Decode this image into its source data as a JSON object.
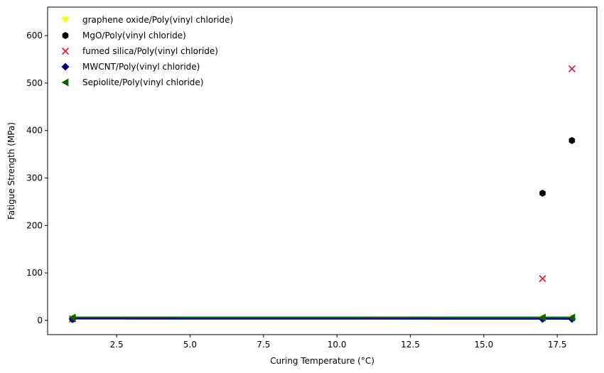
{
  "chart_data": {
    "type": "scatter",
    "title": "",
    "xlabel": "Curing Temperature (°C)",
    "ylabel": "Fatigue Strength (MPa)",
    "xlim": [
      0.15,
      18.85
    ],
    "ylim": [
      -30,
      660
    ],
    "xticks": [
      2.5,
      5.0,
      7.5,
      10.0,
      12.5,
      15.0,
      17.5
    ],
    "xtick_labels": [
      "2.5",
      "5.0",
      "7.5",
      "10.0",
      "12.5",
      "15.0",
      "17.5"
    ],
    "yticks": [
      0,
      100,
      200,
      300,
      400,
      500,
      600
    ],
    "ytick_labels": [
      "0",
      "100",
      "200",
      "300",
      "400",
      "500",
      "600"
    ],
    "grid": false,
    "legend_position": "top-left",
    "series": [
      {
        "name": "graphene oxide/Poly(vinyl chloride)",
        "marker": "triangle-down",
        "color": "#ffff00",
        "x": [
          1,
          17,
          18
        ],
        "y": [
          5,
          5,
          5
        ],
        "fit": [
          [
            1,
            5.5
          ],
          [
            18,
            5.0
          ]
        ]
      },
      {
        "name": "MgO/Poly(vinyl chloride)",
        "marker": "hexagon",
        "color": "#000000",
        "x": [
          1,
          17,
          18
        ],
        "y": [
          2,
          268,
          379
        ],
        "fit": [
          [
            1,
            4.0
          ],
          [
            18,
            4.0
          ]
        ]
      },
      {
        "name": "fumed silica/Poly(vinyl chloride)",
        "marker": "x",
        "color": "#dc143c",
        "x": [
          1,
          17,
          18
        ],
        "y": [
          3,
          88,
          530
        ],
        "fit": [
          [
            1,
            4.5
          ],
          [
            18,
            4.5
          ]
        ]
      },
      {
        "name": "MWCNT/Poly(vinyl chloride)",
        "marker": "diamond",
        "color": "#00008b",
        "x": [
          1,
          17,
          18
        ],
        "y": [
          3,
          3,
          3
        ],
        "fit": [
          [
            1,
            3.5
          ],
          [
            18,
            3.0
          ]
        ]
      },
      {
        "name": "Sepiolite/Poly(vinyl chloride)",
        "marker": "triangle-left",
        "color": "#006400",
        "x": [
          1,
          17,
          18
        ],
        "y": [
          6,
          6,
          6
        ],
        "fit": [
          [
            1,
            6.5
          ],
          [
            18,
            6.5
          ]
        ]
      }
    ]
  }
}
